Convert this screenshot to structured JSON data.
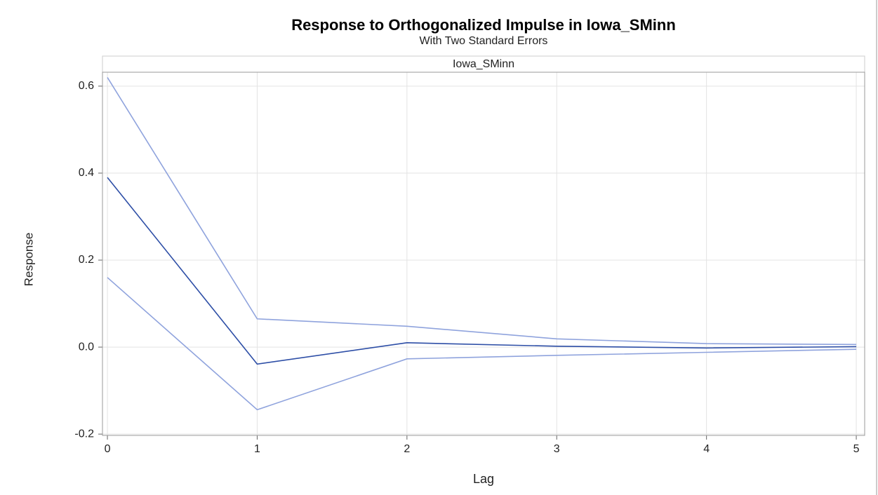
{
  "chart_data": {
    "type": "line",
    "title": "Response to Orthogonalized Impulse in Iowa_SMinn",
    "subtitle": "With Two Standard Errors",
    "panel_title": "Iowa_SMinn",
    "x_label": "Lag",
    "y_label": "Response",
    "x": [
      0,
      1,
      2,
      3,
      4,
      5
    ],
    "series": [
      {
        "color": "#8fa3dd",
        "values": [
          0.62,
          0.065,
          0.048,
          0.019,
          0.008,
          0.006
        ]
      },
      {
        "color": "#2d4ea6",
        "values": [
          0.39,
          -0.039,
          0.01,
          0.002,
          -0.002,
          0.001
        ]
      },
      {
        "color": "#8fa3dd",
        "values": [
          0.16,
          -0.144,
          -0.027,
          -0.019,
          -0.012,
          -0.005
        ]
      }
    ],
    "xlim": [
      -0.033,
      5.056
    ],
    "ylim": [
      -0.203,
      0.632
    ],
    "xticks": [
      0,
      1,
      2,
      3,
      4,
      5
    ],
    "yticks": [
      {
        "value": -0.2,
        "label": "-0.2"
      },
      {
        "value": 0,
        "label": "0.0"
      },
      0.2,
      0.4,
      0.6
    ],
    "grid": true
  }
}
